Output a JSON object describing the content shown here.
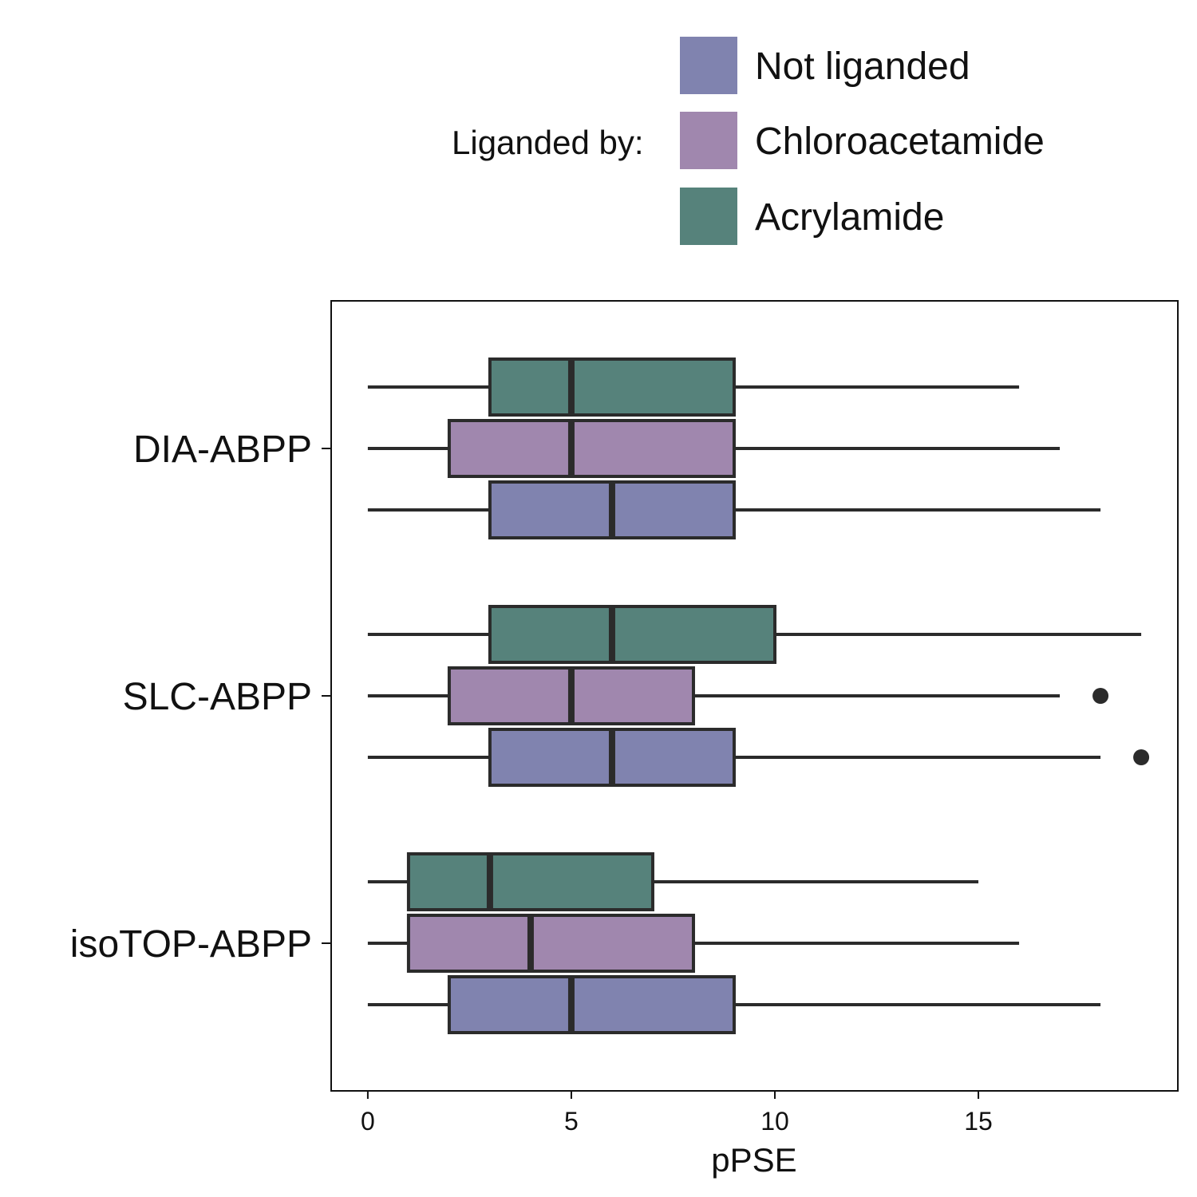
{
  "chart_data": {
    "type": "boxplot",
    "orientation": "horizontal",
    "xlabel": "pPSE",
    "ylabel": "",
    "xlim": [
      -0.9,
      19.9
    ],
    "xticks": [
      0,
      5,
      10,
      15
    ],
    "categories": [
      "DIA-ABPP",
      "SLC-ABPP",
      "isoTOP-ABPP"
    ],
    "legend": {
      "title": "Liganded by:",
      "position": "top-right",
      "entries": [
        "Not liganded",
        "Chloroacetamide",
        "Acrylamide"
      ]
    },
    "series": [
      {
        "name": "Not liganded",
        "color": "#8083af",
        "boxes": [
          {
            "category": "DIA-ABPP",
            "whisker_low": 0,
            "q1": 3,
            "median": 6,
            "q3": 9,
            "whisker_high": 18,
            "outliers": []
          },
          {
            "category": "SLC-ABPP",
            "whisker_low": 0,
            "q1": 3,
            "median": 6,
            "q3": 9,
            "whisker_high": 18,
            "outliers": [
              19
            ]
          },
          {
            "category": "isoTOP-ABPP",
            "whisker_low": 0,
            "q1": 2,
            "median": 5,
            "q3": 9,
            "whisker_high": 18,
            "outliers": []
          }
        ]
      },
      {
        "name": "Chloroacetamide",
        "color": "#a087ae",
        "boxes": [
          {
            "category": "DIA-ABPP",
            "whisker_low": 0,
            "q1": 2,
            "median": 5,
            "q3": 9,
            "whisker_high": 17,
            "outliers": []
          },
          {
            "category": "SLC-ABPP",
            "whisker_low": 0,
            "q1": 2,
            "median": 5,
            "q3": 8,
            "whisker_high": 17,
            "outliers": [
              18
            ]
          },
          {
            "category": "isoTOP-ABPP",
            "whisker_low": 0,
            "q1": 1,
            "median": 4,
            "q3": 8,
            "whisker_high": 16,
            "outliers": []
          }
        ]
      },
      {
        "name": "Acrylamide",
        "color": "#56827b",
        "boxes": [
          {
            "category": "DIA-ABPP",
            "whisker_low": 0,
            "q1": 3,
            "median": 5,
            "q3": 9,
            "whisker_high": 16,
            "outliers": []
          },
          {
            "category": "SLC-ABPP",
            "whisker_low": 0,
            "q1": 3,
            "median": 6,
            "q3": 10,
            "whisker_high": 19,
            "outliers": []
          },
          {
            "category": "isoTOP-ABPP",
            "whisker_low": 0,
            "q1": 1,
            "median": 3,
            "q3": 7,
            "whisker_high": 15,
            "outliers": []
          }
        ]
      }
    ]
  }
}
